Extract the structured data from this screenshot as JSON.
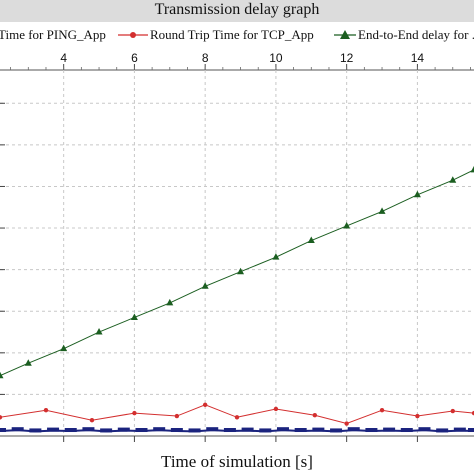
{
  "chart_data": {
    "type": "line",
    "title": "Transmission delay graph",
    "xlabel": "Time of simulation [s]",
    "ylabel": "",
    "xlim": [
      2.2,
      15.6
    ],
    "ylim": [
      0,
      8.8
    ],
    "x_ticks": [
      "4",
      "6",
      "8",
      "10",
      "12",
      "14"
    ],
    "grid": true,
    "legend_position": "top",
    "series": [
      {
        "name": "Time for PING_App",
        "color": "#1a237e",
        "marker": "square",
        "x": [
          2.2,
          2.7,
          3.2,
          3.7,
          4.2,
          4.7,
          5.2,
          5.7,
          6.2,
          6.7,
          7.2,
          7.7,
          8.2,
          8.7,
          9.2,
          9.7,
          10.2,
          10.7,
          11.2,
          11.7,
          12.2,
          12.7,
          13.2,
          13.7,
          14.2,
          14.7,
          15.2,
          15.6
        ],
        "y": [
          0.12,
          0.14,
          0.11,
          0.13,
          0.12,
          0.14,
          0.11,
          0.13,
          0.12,
          0.14,
          0.12,
          0.11,
          0.14,
          0.12,
          0.13,
          0.11,
          0.14,
          0.12,
          0.13,
          0.11,
          0.14,
          0.12,
          0.13,
          0.12,
          0.14,
          0.11,
          0.13,
          0.12
        ]
      },
      {
        "name": "Round Trip Time for TCP_App",
        "color": "#d32f2f",
        "marker": "circle",
        "x": [
          2.2,
          3.5,
          4.8,
          6.0,
          7.2,
          8.0,
          8.9,
          10.0,
          11.1,
          12.0,
          13.0,
          14.0,
          15.0,
          15.6
        ],
        "y": [
          0.45,
          0.62,
          0.38,
          0.55,
          0.48,
          0.75,
          0.45,
          0.65,
          0.5,
          0.3,
          0.62,
          0.48,
          0.6,
          0.55
        ]
      },
      {
        "name": "End-to-End delay for ...",
        "color": "#1b5e20",
        "marker": "triangle",
        "x": [
          2.2,
          3.0,
          4.0,
          5.0,
          6.0,
          7.0,
          8.0,
          9.0,
          10.0,
          11.0,
          12.0,
          13.0,
          14.0,
          15.0,
          15.6
        ],
        "y": [
          1.45,
          1.75,
          2.1,
          2.5,
          2.85,
          3.2,
          3.6,
          3.95,
          4.3,
          4.7,
          5.05,
          5.4,
          5.8,
          6.15,
          6.4
        ]
      }
    ]
  }
}
